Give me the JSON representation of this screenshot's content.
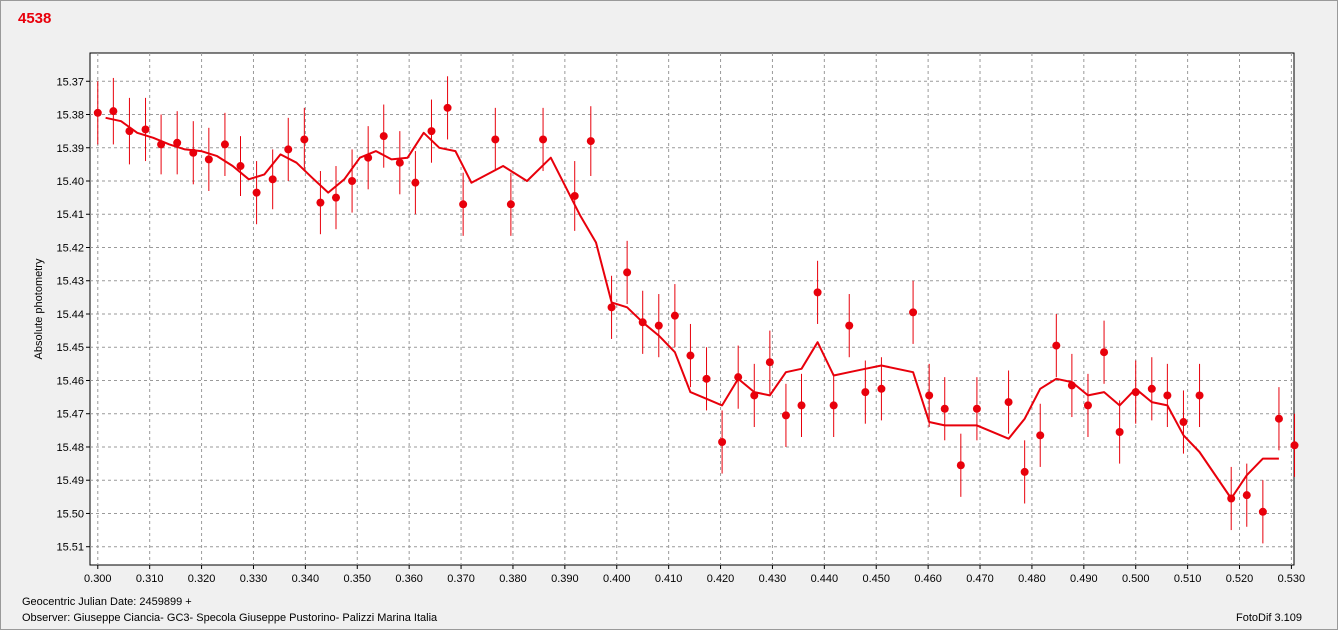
{
  "object_title": "4538",
  "footer": {
    "jd_label": "Geocentric Julian Date: 2459899 +",
    "observer": "Observer: Giuseppe Ciancia- GC3- Specola Giuseppe Pustorino- Palizzi Marina Italia",
    "software": "FotoDif 3.109"
  },
  "colors": {
    "accent": "#e8000b",
    "background": "#f0f0f0",
    "plot_background": "#ffffff",
    "grid": "#9a9a9a"
  },
  "chart_data": {
    "type": "scatter",
    "ylabel": "Absolute photometry",
    "xlabel": "",
    "xlim": [
      0.2985,
      0.5305
    ],
    "ylim": [
      15.5155,
      15.3615
    ],
    "y_inverted": true,
    "grid": true,
    "x_ticks": [
      "0.300",
      "0.310",
      "0.320",
      "0.330",
      "0.340",
      "0.350",
      "0.360",
      "0.370",
      "0.380",
      "0.390",
      "0.400",
      "0.410",
      "0.420",
      "0.430",
      "0.440",
      "0.450",
      "0.460",
      "0.470",
      "0.480",
      "0.490",
      "0.500",
      "0.510",
      "0.520",
      "0.530"
    ],
    "y_ticks": [
      "15.37",
      "15.38",
      "15.39",
      "15.40",
      "15.41",
      "15.42",
      "15.43",
      "15.44",
      "15.45",
      "15.46",
      "15.47",
      "15.48",
      "15.49",
      "15.50",
      "15.51"
    ],
    "series": [
      {
        "kind": "points_with_error",
        "color": "#e8000b",
        "x": [
          0.3,
          0.303,
          0.3061,
          0.3092,
          0.3122,
          0.3153,
          0.3184,
          0.3214,
          0.3245,
          0.3275,
          0.3306,
          0.3337,
          0.3367,
          0.3398,
          0.3429,
          0.3459,
          0.349,
          0.3521,
          0.3551,
          0.3582,
          0.3612,
          0.3643,
          0.3674,
          0.3704,
          0.3766,
          0.3796,
          0.3858,
          0.3919,
          0.395,
          0.399,
          0.402,
          0.405,
          0.4081,
          0.4112,
          0.4142,
          0.4173,
          0.4203,
          0.4234,
          0.4265,
          0.4295,
          0.4326,
          0.4356,
          0.4387,
          0.4418,
          0.4448,
          0.4479,
          0.451,
          0.4571,
          0.4602,
          0.4632,
          0.4663,
          0.4694,
          0.4755,
          0.4786,
          0.4816,
          0.4847,
          0.4877,
          0.4908,
          0.4939,
          0.4969,
          0.5,
          0.5031,
          0.5061,
          0.5092,
          0.5123,
          0.5184,
          0.5214,
          0.5245,
          0.5276,
          0.5306
        ],
        "y": [
          15.3795,
          15.379,
          15.385,
          15.3845,
          15.389,
          15.3885,
          15.3915,
          15.3935,
          15.389,
          15.3955,
          15.4035,
          15.3995,
          15.3905,
          15.3875,
          15.4065,
          15.405,
          15.4,
          15.393,
          15.3865,
          15.3945,
          15.4005,
          15.385,
          15.378,
          15.407,
          15.3875,
          15.407,
          15.3875,
          15.4045,
          15.388,
          15.438,
          15.4275,
          15.4425,
          15.4435,
          15.4405,
          15.4525,
          15.4595,
          15.4785,
          15.459,
          15.4645,
          15.4545,
          15.4705,
          15.4675,
          15.4335,
          15.4675,
          15.4435,
          15.4635,
          15.4625,
          15.4395,
          15.4645,
          15.4685,
          15.4855,
          15.4685,
          15.4665,
          15.4875,
          15.4765,
          15.4495,
          15.4615,
          15.4675,
          15.4515,
          15.4755,
          15.4635,
          15.4625,
          15.4645,
          15.4725,
          15.4645,
          15.4955,
          15.4945,
          15.4995,
          15.4715,
          15.4795
        ],
        "err": [
          0.0095,
          0.01,
          0.01,
          0.0095,
          0.009,
          0.0095,
          0.0095,
          0.0095,
          0.0095,
          0.009,
          0.0095,
          0.009,
          0.0095,
          0.0095,
          0.0095,
          0.0095,
          0.0095,
          0.0095,
          0.0095,
          0.0095,
          0.0095,
          0.0095,
          0.0095,
          0.0095,
          0.0095,
          0.0095,
          0.0095,
          0.0105,
          0.0105,
          0.0095,
          0.0095,
          0.0095,
          0.0095,
          0.0095,
          0.0095,
          0.0095,
          0.0095,
          0.0095,
          0.0095,
          0.0095,
          0.0095,
          0.0095,
          0.0095,
          0.0095,
          0.0095,
          0.0095,
          0.0095,
          0.0095,
          0.0095,
          0.0095,
          0.0095,
          0.0095,
          0.0095,
          0.0095,
          0.0095,
          0.0095,
          0.0095,
          0.0095,
          0.0095,
          0.0095,
          0.0095,
          0.0095,
          0.0095,
          0.0095,
          0.0095,
          0.0095,
          0.0095,
          0.0095,
          0.0095,
          0.0095
        ]
      },
      {
        "kind": "line",
        "color": "#e8000b",
        "x": [
          0.3015,
          0.3045,
          0.3076,
          0.3107,
          0.3138,
          0.3168,
          0.3199,
          0.323,
          0.326,
          0.3291,
          0.3321,
          0.3352,
          0.3383,
          0.3413,
          0.3444,
          0.3475,
          0.3505,
          0.3536,
          0.3566,
          0.3597,
          0.3628,
          0.3658,
          0.3689,
          0.372,
          0.3781,
          0.3827,
          0.3873,
          0.393,
          0.396,
          0.399,
          0.402,
          0.405,
          0.4081,
          0.4112,
          0.4142,
          0.4173,
          0.4203,
          0.4234,
          0.4265,
          0.4295,
          0.4326,
          0.4356,
          0.4387,
          0.4418,
          0.4448,
          0.4479,
          0.451,
          0.4571,
          0.4602,
          0.4632,
          0.4663,
          0.4694,
          0.4755,
          0.4786,
          0.4816,
          0.4847,
          0.4877,
          0.4908,
          0.4939,
          0.4969,
          0.5,
          0.5031,
          0.5061,
          0.5092,
          0.5123,
          0.5184,
          0.5214,
          0.5245,
          0.5276
        ],
        "y": [
          15.381,
          15.382,
          15.3855,
          15.387,
          15.389,
          15.3905,
          15.391,
          15.3925,
          15.3955,
          15.3995,
          15.398,
          15.392,
          15.3945,
          15.399,
          15.4035,
          15.3995,
          15.393,
          15.391,
          15.3935,
          15.393,
          15.3855,
          15.39,
          15.391,
          15.4005,
          15.3955,
          15.4,
          15.393,
          15.4105,
          15.4185,
          15.4365,
          15.438,
          15.4425,
          15.4465,
          15.4515,
          15.4635,
          15.4655,
          15.4675,
          15.4595,
          15.4635,
          15.4645,
          15.4575,
          15.4565,
          15.4485,
          15.4585,
          15.4575,
          15.4565,
          15.4555,
          15.4575,
          15.4725,
          15.4735,
          15.4735,
          15.4735,
          15.4775,
          15.4715,
          15.4625,
          15.4595,
          15.4605,
          15.4645,
          15.4635,
          15.4675,
          15.4625,
          15.4665,
          15.4675,
          15.4765,
          15.4815,
          15.4955,
          15.4885,
          15.4835,
          15.4835
        ]
      }
    ]
  }
}
